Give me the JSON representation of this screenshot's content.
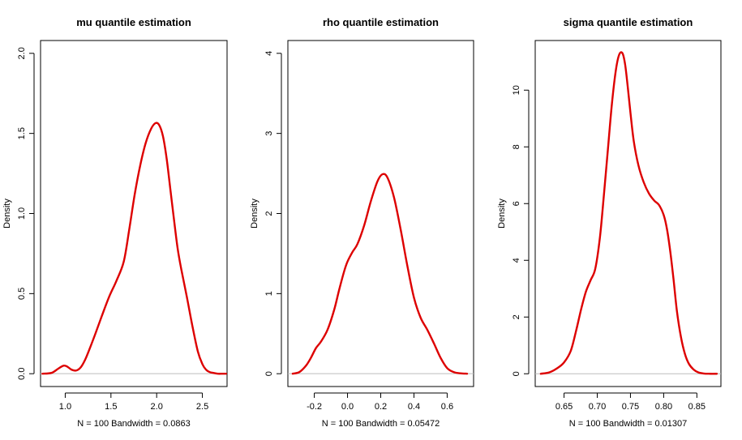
{
  "chart_data": [
    {
      "type": "line",
      "title": "mu quantile estimation",
      "xlabel": "N = 100   Bandwidth = 0.0863",
      "ylabel": "Density",
      "xlim": [
        0.73,
        2.77
      ],
      "ylim": [
        -0.08,
        2.08
      ],
      "xticks": [
        1.0,
        1.5,
        2.0,
        2.5
      ],
      "xtick_labels": [
        "1.0",
        "1.5",
        "2.0",
        "2.5"
      ],
      "yticks": [
        0.0,
        0.5,
        1.0,
        1.5,
        2.0
      ],
      "ytick_labels": [
        "0.0",
        "0.5",
        "1.0",
        "1.5",
        "2.0"
      ],
      "color": "#dd0000",
      "series": [
        {
          "x": [
            0.75,
            0.85,
            0.92,
            0.98,
            1.02,
            1.07,
            1.12,
            1.17,
            1.22,
            1.27,
            1.33,
            1.4,
            1.48,
            1.56,
            1.64,
            1.7,
            1.76,
            1.82,
            1.88,
            1.94,
            1.99,
            2.03,
            2.07,
            2.11,
            2.15,
            2.19,
            2.23,
            2.27,
            2.33,
            2.39,
            2.45,
            2.5,
            2.54,
            2.58,
            2.62,
            2.67,
            2.72,
            2.76
          ],
          "y": [
            0.0,
            0.005,
            0.03,
            0.05,
            0.045,
            0.025,
            0.02,
            0.04,
            0.09,
            0.16,
            0.25,
            0.36,
            0.48,
            0.58,
            0.7,
            0.9,
            1.12,
            1.3,
            1.44,
            1.53,
            1.565,
            1.55,
            1.48,
            1.34,
            1.15,
            0.96,
            0.78,
            0.65,
            0.48,
            0.3,
            0.14,
            0.06,
            0.025,
            0.01,
            0.005,
            0.0,
            0.0,
            0.0
          ]
        }
      ]
    },
    {
      "type": "line",
      "title": "rho quantile estimation",
      "xlabel": "N = 100   Bandwidth = 0.05472",
      "ylabel": "Density",
      "xlim": [
        -0.359,
        0.759
      ],
      "ylim": [
        -0.16,
        4.16
      ],
      "xticks": [
        -0.2,
        0.0,
        0.2,
        0.4,
        0.6
      ],
      "xtick_labels": [
        "-0.2",
        "0.0",
        "0.2",
        "0.4",
        "0.6"
      ],
      "yticks": [
        0,
        1,
        2,
        3,
        4
      ],
      "ytick_labels": [
        "0",
        "1",
        "2",
        "3",
        "4"
      ],
      "color": "#dd0000",
      "series": [
        {
          "x": [
            -0.33,
            -0.29,
            -0.25,
            -0.22,
            -0.19,
            -0.16,
            -0.12,
            -0.08,
            -0.05,
            -0.02,
            0.0,
            0.03,
            0.06,
            0.1,
            0.14,
            0.18,
            0.21,
            0.24,
            0.28,
            0.32,
            0.36,
            0.4,
            0.44,
            0.48,
            0.52,
            0.56,
            0.6,
            0.64,
            0.68,
            0.72
          ],
          "y": [
            0.0,
            0.02,
            0.1,
            0.2,
            0.32,
            0.4,
            0.55,
            0.8,
            1.05,
            1.28,
            1.4,
            1.52,
            1.62,
            1.85,
            2.15,
            2.4,
            2.49,
            2.45,
            2.2,
            1.8,
            1.35,
            0.95,
            0.7,
            0.55,
            0.38,
            0.2,
            0.07,
            0.02,
            0.005,
            0.0
          ]
        }
      ]
    },
    {
      "type": "line",
      "title": "sigma quantile estimation",
      "xlabel": "N = 100   Bandwidth = 0.01307",
      "ylabel": "Density",
      "xlim": [
        0.6066,
        0.8862
      ],
      "ylim": [
        -0.45,
        11.75
      ],
      "xticks": [
        0.65,
        0.7,
        0.75,
        0.8,
        0.85
      ],
      "xtick_labels": [
        "0.65",
        "0.70",
        "0.75",
        "0.80",
        "0.85"
      ],
      "yticks": [
        0,
        2,
        4,
        6,
        8,
        10
      ],
      "ytick_labels": [
        "0",
        "2",
        "4",
        "6",
        "8",
        "10"
      ],
      "color": "#dd0000",
      "series": [
        {
          "x": [
            0.615,
            0.628,
            0.64,
            0.65,
            0.66,
            0.668,
            0.676,
            0.683,
            0.69,
            0.697,
            0.704,
            0.71,
            0.716,
            0.722,
            0.728,
            0.733,
            0.738,
            0.742,
            0.746,
            0.75,
            0.755,
            0.762,
            0.77,
            0.778,
            0.786,
            0.793,
            0.8,
            0.805,
            0.81,
            0.815,
            0.82,
            0.826,
            0.832,
            0.838,
            0.845,
            0.852,
            0.86,
            0.87,
            0.88
          ],
          "y": [
            0.0,
            0.05,
            0.2,
            0.4,
            0.8,
            1.5,
            2.3,
            2.9,
            3.3,
            3.7,
            4.8,
            6.3,
            7.9,
            9.5,
            10.7,
            11.25,
            11.3,
            10.9,
            10.1,
            9.2,
            8.2,
            7.35,
            6.75,
            6.35,
            6.1,
            5.95,
            5.6,
            5.1,
            4.3,
            3.3,
            2.2,
            1.3,
            0.7,
            0.35,
            0.15,
            0.05,
            0.01,
            0.0,
            0.0
          ]
        }
      ]
    }
  ]
}
